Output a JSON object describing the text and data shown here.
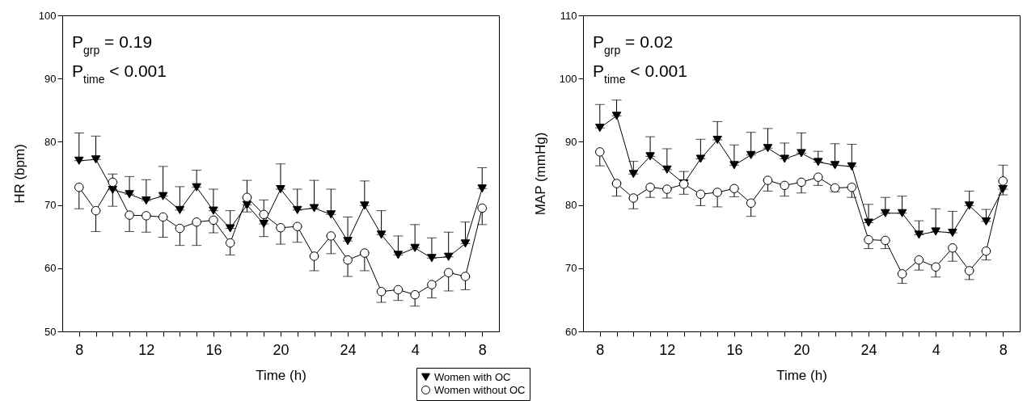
{
  "chart_data": [
    {
      "type": "line",
      "xlabel": "Time (h)",
      "ylabel": "HR (bpm)",
      "annotations": [
        "P$_{grp}$ = 0.19",
        "P$_{time}$ < 0.001"
      ],
      "categories": [
        "8",
        null,
        null,
        null,
        "12",
        null,
        null,
        null,
        "16",
        null,
        null,
        null,
        "20",
        null,
        null,
        null,
        "24",
        null,
        null,
        null,
        "4",
        null,
        null,
        null,
        "8"
      ],
      "ylim": [
        50,
        100
      ],
      "yticks": [
        50,
        60,
        70,
        80,
        90,
        100
      ],
      "grid": false,
      "legend": "bottom",
      "series": [
        {
          "name": "Women with OC",
          "color": "#000000",
          "marker": "triangle",
          "values": [
            77.0,
            77.2,
            72.4,
            71.7,
            70.7,
            71.4,
            69.2,
            72.8,
            69.1,
            66.3,
            70.0,
            67.0,
            72.5,
            69.2,
            69.5,
            68.5,
            64.3,
            69.9,
            65.3,
            62.1,
            63.2,
            61.6,
            61.8,
            63.9,
            72.6
          ],
          "errors": [
            [
              77.0,
              81.4
            ],
            [
              77.2,
              80.9
            ],
            [
              72.4,
              74.9
            ],
            [
              71.7,
              74.5
            ],
            [
              70.7,
              74.0
            ],
            [
              71.4,
              76.1
            ],
            [
              69.2,
              72.9
            ],
            [
              72.8,
              75.5
            ],
            [
              69.1,
              72.5
            ],
            [
              66.3,
              69.1
            ],
            [
              70.0,
              73.9
            ],
            [
              67.0,
              70.8
            ],
            [
              72.5,
              76.5
            ],
            [
              69.2,
              72.5
            ],
            [
              69.5,
              73.9
            ],
            [
              68.5,
              72.5
            ],
            [
              64.3,
              68.1
            ],
            [
              69.9,
              73.8
            ],
            [
              65.3,
              69.1
            ],
            [
              62.1,
              65.1
            ],
            [
              63.2,
              66.9
            ],
            [
              61.6,
              64.8
            ],
            [
              61.8,
              65.7
            ],
            [
              63.9,
              67.3
            ],
            [
              72.6,
              75.9
            ]
          ]
        },
        {
          "name": "Women without OC",
          "color": "#000000",
          "marker": "circle",
          "values": [
            72.8,
            69.1,
            73.6,
            68.4,
            68.3,
            68.1,
            66.3,
            67.3,
            67.6,
            64.0,
            71.2,
            68.5,
            66.4,
            66.6,
            61.9,
            65.1,
            61.3,
            62.4,
            56.3,
            56.6,
            55.8,
            57.4,
            59.3,
            58.7,
            69.5
          ],
          "errors": [
            [
              69.4,
              72.8
            ],
            [
              65.8,
              69.1
            ],
            [
              69.8,
              73.6
            ],
            [
              65.8,
              68.4
            ],
            [
              65.7,
              68.3
            ],
            [
              64.9,
              68.1
            ],
            [
              63.6,
              66.3
            ],
            [
              63.6,
              67.3
            ],
            [
              65.6,
              67.6
            ],
            [
              62.1,
              64.0
            ],
            [
              68.9,
              71.2
            ],
            [
              65.0,
              68.5
            ],
            [
              63.8,
              66.4
            ],
            [
              64.1,
              66.6
            ],
            [
              59.6,
              61.9
            ],
            [
              62.3,
              65.1
            ],
            [
              58.7,
              61.3
            ],
            [
              59.6,
              62.4
            ],
            [
              54.6,
              56.3
            ],
            [
              54.9,
              56.6
            ],
            [
              54.0,
              55.8
            ],
            [
              55.3,
              57.4
            ],
            [
              56.4,
              59.3
            ],
            [
              56.6,
              58.7
            ],
            [
              66.9,
              69.5
            ]
          ]
        }
      ]
    },
    {
      "type": "line",
      "xlabel": "Time (h)",
      "ylabel": "MAP (mmHg)",
      "annotations": [
        "P$_{grp}$ = 0.02",
        "P$_{time}$ < 0.001"
      ],
      "categories": [
        "8",
        null,
        null,
        null,
        "12",
        null,
        null,
        null,
        "16",
        null,
        null,
        null,
        "20",
        null,
        null,
        null,
        "24",
        null,
        null,
        null,
        "4",
        null,
        null,
        null,
        "8"
      ],
      "ylim": [
        60,
        110
      ],
      "yticks": [
        60,
        70,
        80,
        90,
        100,
        110
      ],
      "grid": false,
      "legend": "bottom",
      "series": [
        {
          "name": "Women with OC",
          "color": "#000000",
          "marker": "triangle",
          "values": [
            92.2,
            94.1,
            84.9,
            87.7,
            85.6,
            83.4,
            87.3,
            90.3,
            86.3,
            87.9,
            89.0,
            87.3,
            88.2,
            86.8,
            86.3,
            86.1,
            77.2,
            78.7,
            78.7,
            75.3,
            75.8,
            75.6,
            79.9,
            77.4,
            82.5
          ],
          "errors": [
            [
              92.2,
              95.9
            ],
            [
              94.1,
              96.6
            ],
            [
              84.9,
              86.9
            ],
            [
              87.7,
              90.8
            ],
            [
              85.6,
              88.9
            ],
            [
              83.4,
              85.3
            ],
            [
              87.3,
              90.4
            ],
            [
              90.3,
              93.2
            ],
            [
              86.3,
              89.5
            ],
            [
              87.9,
              91.5
            ],
            [
              89.0,
              92.1
            ],
            [
              87.3,
              89.8
            ],
            [
              88.2,
              91.4
            ],
            [
              86.8,
              88.5
            ],
            [
              86.3,
              89.7
            ],
            [
              86.1,
              89.6
            ],
            [
              77.2,
              80.1
            ],
            [
              78.7,
              81.2
            ],
            [
              78.7,
              81.4
            ],
            [
              75.3,
              77.5
            ],
            [
              75.8,
              79.4
            ],
            [
              75.6,
              79.0
            ],
            [
              79.9,
              82.2
            ],
            [
              77.4,
              79.3
            ],
            [
              82.5,
              86.3
            ]
          ]
        },
        {
          "name": "Women without OC",
          "color": "#000000",
          "marker": "circle",
          "values": [
            88.4,
            83.4,
            81.1,
            82.8,
            82.5,
            83.3,
            81.7,
            82.0,
            82.6,
            80.3,
            83.9,
            83.1,
            83.6,
            84.4,
            82.7,
            82.8,
            74.5,
            74.4,
            69.1,
            71.3,
            70.2,
            73.2,
            69.6,
            72.7,
            83.8
          ],
          "errors": [
            [
              86.2,
              88.4
            ],
            [
              81.4,
              83.4
            ],
            [
              79.4,
              81.1
            ],
            [
              81.2,
              82.8
            ],
            [
              81.1,
              82.5
            ],
            [
              81.7,
              83.3
            ],
            [
              79.9,
              81.7
            ],
            [
              79.7,
              82.0
            ],
            [
              81.3,
              82.6
            ],
            [
              78.2,
              80.3
            ],
            [
              82.2,
              83.9
            ],
            [
              81.4,
              83.1
            ],
            [
              81.9,
              83.6
            ],
            [
              83.1,
              84.4
            ],
            [
              82.1,
              82.7
            ],
            [
              81.2,
              82.8
            ],
            [
              73.1,
              74.5
            ],
            [
              73.1,
              74.4
            ],
            [
              67.6,
              69.1
            ],
            [
              69.7,
              71.3
            ],
            [
              68.6,
              70.2
            ],
            [
              71.1,
              73.2
            ],
            [
              68.2,
              69.6
            ],
            [
              71.3,
              72.7
            ],
            [
              81.6,
              83.8
            ]
          ]
        }
      ]
    }
  ]
}
